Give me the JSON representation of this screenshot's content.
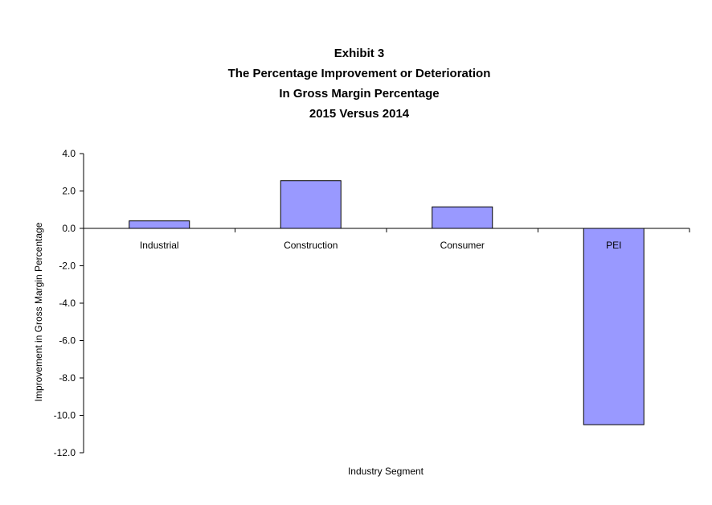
{
  "chart_data": {
    "type": "bar",
    "title_lines": [
      "Exhibit 3",
      "The Percentage Improvement or Deterioration",
      "In Gross Margin Percentage",
      "2015 Versus 2014"
    ],
    "categories": [
      "Industrial",
      "Construction",
      "Consumer",
      "PEI"
    ],
    "values": [
      0.4,
      2.55,
      1.15,
      -10.5
    ],
    "xlabel": "Industry Segment",
    "ylabel": "Improvement in Gross Margin Percentage",
    "ylim": [
      -12,
      4
    ],
    "yticks": [
      "4.0",
      "2.0",
      "0.0",
      "-2.0",
      "-4.0",
      "-6.0",
      "-8.0",
      "-10.0",
      "-12.0"
    ],
    "bar_color": "#9999ff",
    "grid": false,
    "legend": "none"
  }
}
